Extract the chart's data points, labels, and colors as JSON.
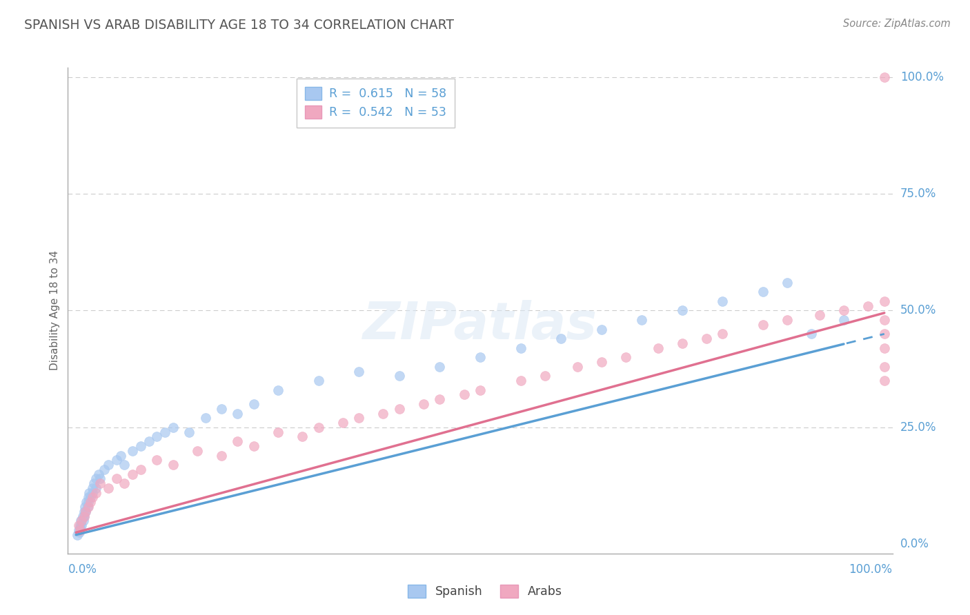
{
  "title": "SPANISH VS ARAB DISABILITY AGE 18 TO 34 CORRELATION CHART",
  "source": "Source: ZipAtlas.com",
  "ylabel": "Disability Age 18 to 34",
  "ytick_labels": [
    "0.0%",
    "25.0%",
    "50.0%",
    "75.0%",
    "100.0%"
  ],
  "ytick_values": [
    0,
    25,
    50,
    75,
    100
  ],
  "xlim": [
    0,
    100
  ],
  "ylim": [
    0,
    100
  ],
  "spanish_R": 0.615,
  "spanish_N": 58,
  "arab_R": 0.542,
  "arab_N": 53,
  "spanish_color": "#a8c8f0",
  "arab_color": "#f0a8c0",
  "spanish_line_color": "#5a9fd4",
  "arab_line_color": "#e07090",
  "title_color": "#555555",
  "axis_label_color": "#5a9fd4",
  "watermark": "ZIPatlas",
  "spanish_x": [
    0.2,
    0.3,
    0.4,
    0.5,
    0.5,
    0.6,
    0.7,
    0.8,
    0.9,
    1.0,
    1.0,
    1.1,
    1.2,
    1.3,
    1.4,
    1.5,
    1.5,
    1.6,
    1.8,
    2.0,
    2.0,
    2.2,
    2.5,
    2.5,
    2.8,
    3.0,
    3.5,
    4.0,
    5.0,
    5.5,
    6.0,
    7.0,
    8.0,
    9.0,
    10.0,
    11.0,
    12.0,
    14.0,
    16.0,
    18.0,
    20.0,
    22.0,
    25.0,
    30.0,
    35.0,
    40.0,
    45.0,
    50.0,
    55.0,
    60.0,
    65.0,
    70.0,
    75.0,
    80.0,
    85.0,
    88.0,
    91.0,
    95.0
  ],
  "spanish_y": [
    2.0,
    3.0,
    2.5,
    4.0,
    3.5,
    5.0,
    4.0,
    6.0,
    5.0,
    7.0,
    6.0,
    8.0,
    7.0,
    9.0,
    8.0,
    10.0,
    9.0,
    11.0,
    10.0,
    12.0,
    11.0,
    13.0,
    14.0,
    12.0,
    15.0,
    14.0,
    16.0,
    17.0,
    18.0,
    19.0,
    17.0,
    20.0,
    21.0,
    22.0,
    23.0,
    24.0,
    25.0,
    24.0,
    27.0,
    29.0,
    28.0,
    30.0,
    33.0,
    35.0,
    37.0,
    36.0,
    38.0,
    40.0,
    42.0,
    44.0,
    46.0,
    48.0,
    50.0,
    52.0,
    54.0,
    56.0,
    45.0,
    48.0
  ],
  "arab_x": [
    0.3,
    0.5,
    0.7,
    1.0,
    1.2,
    1.5,
    1.8,
    2.0,
    2.5,
    3.0,
    4.0,
    5.0,
    6.0,
    7.0,
    8.0,
    10.0,
    12.0,
    15.0,
    18.0,
    20.0,
    22.0,
    25.0,
    28.0,
    30.0,
    33.0,
    35.0,
    38.0,
    40.0,
    43.0,
    45.0,
    48.0,
    50.0,
    55.0,
    58.0,
    62.0,
    65.0,
    68.0,
    72.0,
    75.0,
    78.0,
    80.0,
    85.0,
    88.0,
    92.0,
    95.0,
    98.0,
    100.0,
    100.0,
    100.0,
    100.0,
    100.0,
    100.0,
    100.0
  ],
  "arab_y": [
    4.0,
    3.0,
    5.0,
    6.0,
    7.0,
    8.0,
    9.0,
    10.0,
    11.0,
    13.0,
    12.0,
    14.0,
    13.0,
    15.0,
    16.0,
    18.0,
    17.0,
    20.0,
    19.0,
    22.0,
    21.0,
    24.0,
    23.0,
    25.0,
    26.0,
    27.0,
    28.0,
    29.0,
    30.0,
    31.0,
    32.0,
    33.0,
    35.0,
    36.0,
    38.0,
    39.0,
    40.0,
    42.0,
    43.0,
    44.0,
    45.0,
    47.0,
    48.0,
    49.0,
    50.0,
    51.0,
    52.0,
    48.0,
    45.0,
    42.0,
    38.0,
    35.0,
    100.0
  ]
}
